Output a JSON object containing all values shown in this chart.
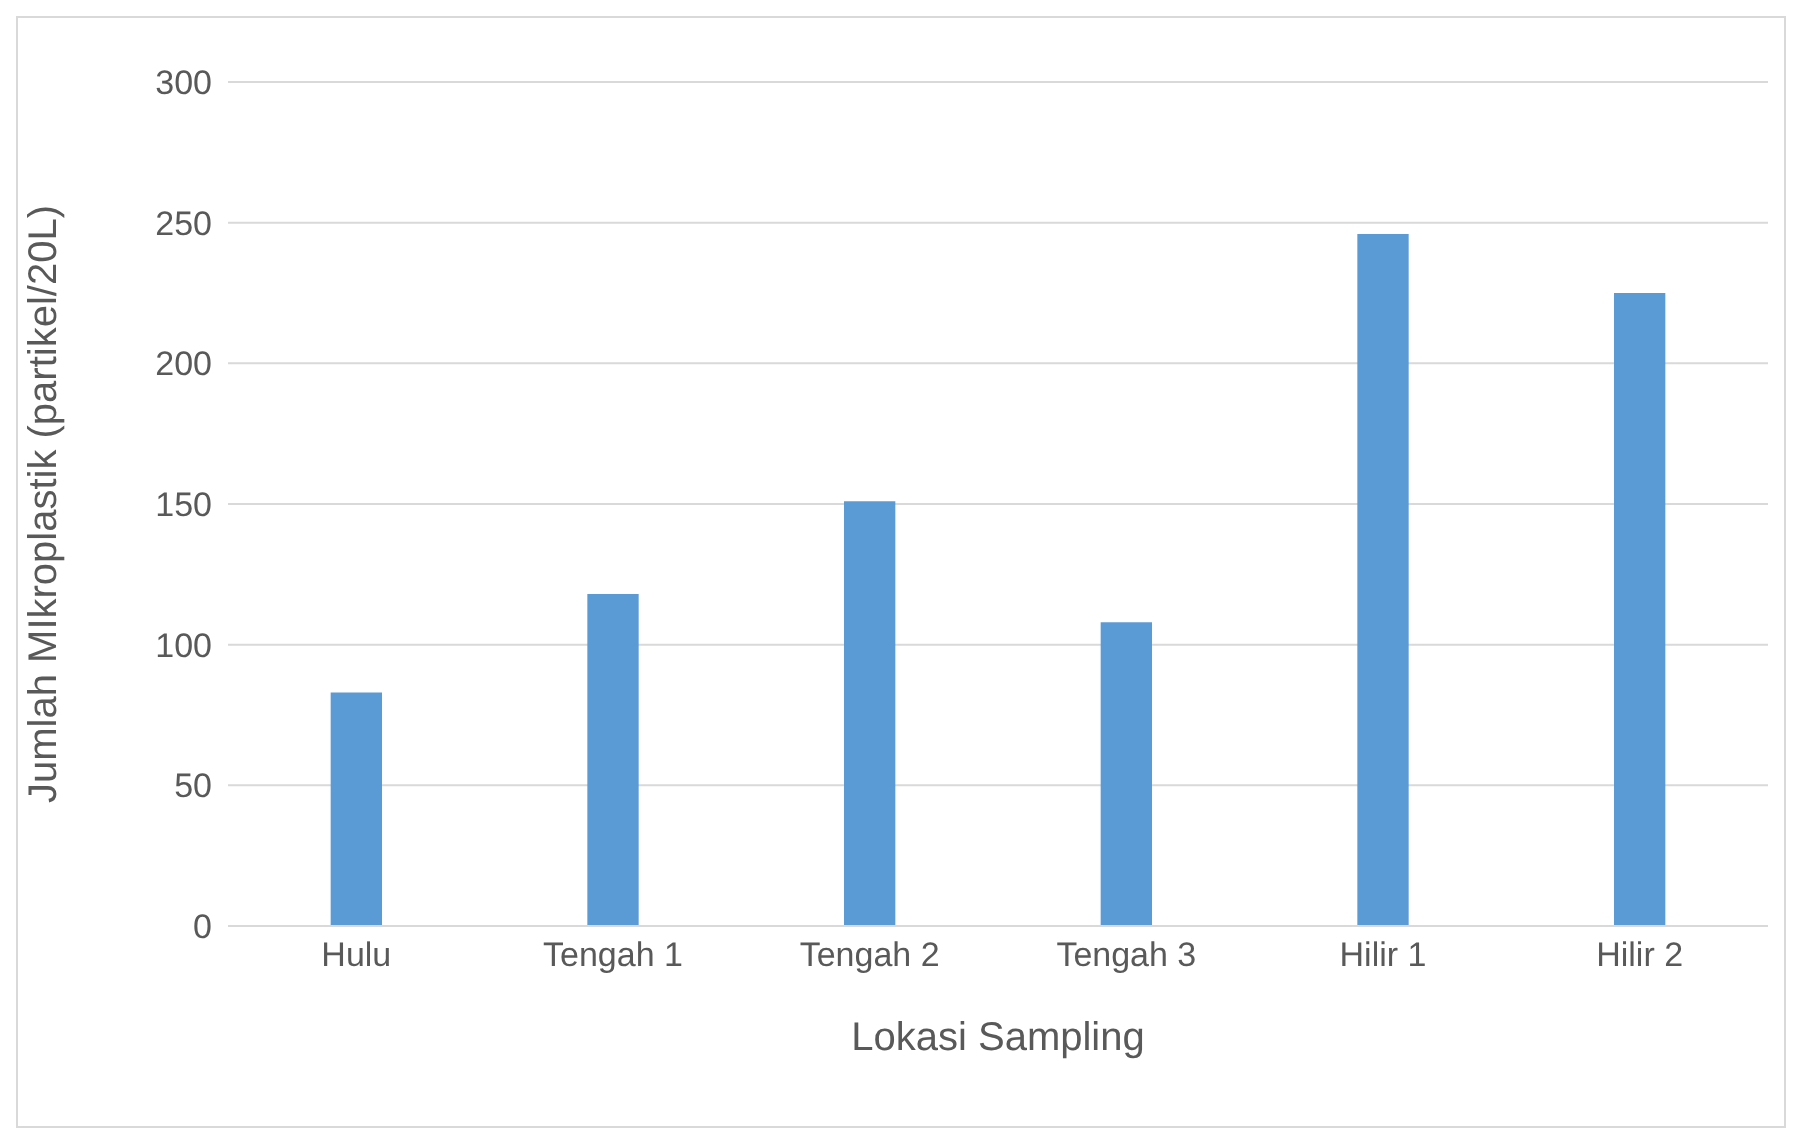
{
  "chart_data": {
    "type": "bar",
    "xlabel": "Lokasi Sampling",
    "ylabel": "Jumlah MIkroplastik (partikel/20L)",
    "categories": [
      "Hulu",
      "Tengah 1",
      "Tengah 2",
      "Tengah 3",
      "Hilir 1",
      "Hilir 2"
    ],
    "values": [
      83,
      118,
      151,
      108,
      246,
      225
    ],
    "color": "#5b9bd5",
    "ylim": [
      0,
      300
    ],
    "yticks": [
      0,
      50,
      100,
      150,
      200,
      250,
      300
    ],
    "grid": "y"
  }
}
